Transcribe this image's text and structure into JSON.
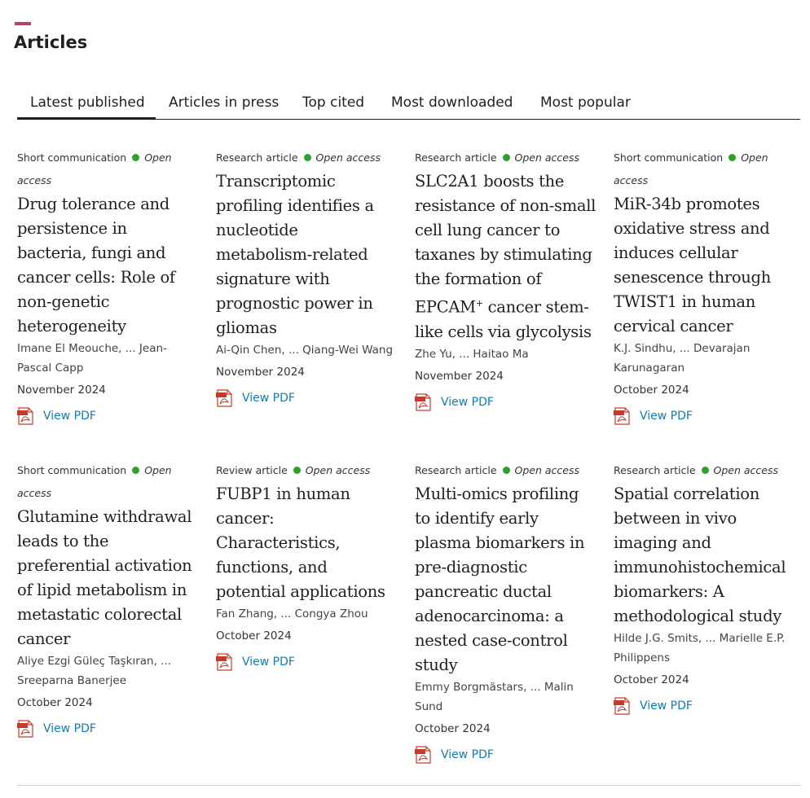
{
  "section": {
    "title": "Articles"
  },
  "tabs": [
    {
      "label": "Latest published",
      "active": true
    },
    {
      "label": "Articles in press",
      "active": false
    },
    {
      "label": "Top cited",
      "active": false
    },
    {
      "label": "Most downloaded",
      "active": false
    },
    {
      "label": "Most popular",
      "active": false
    }
  ],
  "colors": {
    "accent": "#b5426c",
    "open_access_dot": "#29a329",
    "link": "#0c7dbb"
  },
  "pdf_label": "View PDF",
  "articles": [
    {
      "type": "Short communication",
      "access": "Open access",
      "title": "Drug tolerance and persistence in bacteria, fungi and cancer cells: Role of non-genetic heterogeneity",
      "authors": "Imane El Meouche, ... Jean-Pascal Capp",
      "date": "November 2024"
    },
    {
      "type": "Research article",
      "access": "Open access",
      "title": "Transcriptomic profiling identifies a nucleotide metabolism-related signature with prognostic power in gliomas",
      "authors": "Ai-Qin Chen, ... Qiang-Wei Wang",
      "date": "November 2024"
    },
    {
      "type": "Research article",
      "access": "Open access",
      "title_pre": "SLC2A1 boosts the resistance of non-small cell lung cancer to taxanes by stimulating the formation of EPCAM",
      "title_sup": "+",
      "title_post": " cancer stem-like cells via glycolysis",
      "authors": "Zhe Yu, ... Haitao Ma",
      "date": "November 2024"
    },
    {
      "type": "Short communication",
      "access": "Open access",
      "title": "MiR-34b promotes oxidative stress and induces cellular senescence through TWIST1 in human cervical cancer",
      "authors": "K.J. Sindhu, ... Devarajan Karunagaran",
      "date": "October 2024"
    },
    {
      "type": "Short communication",
      "access": "Open access",
      "title": "Glutamine withdrawal leads to the preferential activation of lipid metabolism in metastatic colorectal cancer",
      "authors": "Aliye Ezgi Güleç Taşkıran, ... Sreeparna Banerjee",
      "date": "October 2024"
    },
    {
      "type": "Review article",
      "access": "Open access",
      "title": "FUBP1 in human cancer: Characteristics, functions, and potential applications",
      "authors": "Fan Zhang, ... Congya Zhou",
      "date": "October 2024"
    },
    {
      "type": "Research article",
      "access": "Open access",
      "title": "Multi-omics profiling to identify early plasma biomarkers in pre-diagnostic pancreatic ductal adenocarcinoma: a nested case-control study",
      "authors": "Emmy Borgmästars, ... Malin Sund",
      "date": "October 2024"
    },
    {
      "type": "Research article",
      "access": "Open access",
      "title": "Spatial correlation between in vivo imaging and immunohistochemical biomarkers: A methodological study",
      "authors": "Hilde J.G. Smits, ... Marielle E.P. Philippens",
      "date": "October 2024"
    }
  ]
}
